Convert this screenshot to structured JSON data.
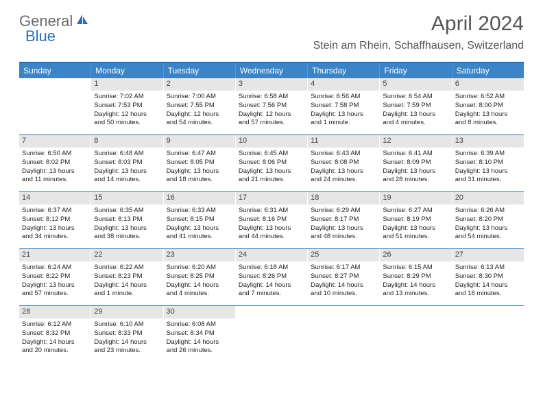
{
  "logo": {
    "text1": "General",
    "text2": "Blue"
  },
  "title": "April 2024",
  "location": "Stein am Rhein, Schaffhausen, Switzerland",
  "colors": {
    "header_bg": "#3a84c7",
    "header_border": "#2a6fb5",
    "date_strip_bg": "#e6e6e6",
    "text": "#333333",
    "title_text": "#555555",
    "logo_gray": "#6a6a6a",
    "logo_blue": "#2a6fb5"
  },
  "day_headers": [
    "Sunday",
    "Monday",
    "Tuesday",
    "Wednesday",
    "Thursday",
    "Friday",
    "Saturday"
  ],
  "weeks": [
    [
      {
        "date": "",
        "lines": []
      },
      {
        "date": "1",
        "lines": [
          "Sunrise: 7:02 AM",
          "Sunset: 7:53 PM",
          "Daylight: 12 hours",
          "and 50 minutes."
        ]
      },
      {
        "date": "2",
        "lines": [
          "Sunrise: 7:00 AM",
          "Sunset: 7:55 PM",
          "Daylight: 12 hours",
          "and 54 minutes."
        ]
      },
      {
        "date": "3",
        "lines": [
          "Sunrise: 6:58 AM",
          "Sunset: 7:56 PM",
          "Daylight: 12 hours",
          "and 57 minutes."
        ]
      },
      {
        "date": "4",
        "lines": [
          "Sunrise: 6:56 AM",
          "Sunset: 7:58 PM",
          "Daylight: 13 hours",
          "and 1 minute."
        ]
      },
      {
        "date": "5",
        "lines": [
          "Sunrise: 6:54 AM",
          "Sunset: 7:59 PM",
          "Daylight: 13 hours",
          "and 4 minutes."
        ]
      },
      {
        "date": "6",
        "lines": [
          "Sunrise: 6:52 AM",
          "Sunset: 8:00 PM",
          "Daylight: 13 hours",
          "and 8 minutes."
        ]
      }
    ],
    [
      {
        "date": "7",
        "lines": [
          "Sunrise: 6:50 AM",
          "Sunset: 8:02 PM",
          "Daylight: 13 hours",
          "and 11 minutes."
        ]
      },
      {
        "date": "8",
        "lines": [
          "Sunrise: 6:48 AM",
          "Sunset: 8:03 PM",
          "Daylight: 13 hours",
          "and 14 minutes."
        ]
      },
      {
        "date": "9",
        "lines": [
          "Sunrise: 6:47 AM",
          "Sunset: 8:05 PM",
          "Daylight: 13 hours",
          "and 18 minutes."
        ]
      },
      {
        "date": "10",
        "lines": [
          "Sunrise: 6:45 AM",
          "Sunset: 8:06 PM",
          "Daylight: 13 hours",
          "and 21 minutes."
        ]
      },
      {
        "date": "11",
        "lines": [
          "Sunrise: 6:43 AM",
          "Sunset: 8:08 PM",
          "Daylight: 13 hours",
          "and 24 minutes."
        ]
      },
      {
        "date": "12",
        "lines": [
          "Sunrise: 6:41 AM",
          "Sunset: 8:09 PM",
          "Daylight: 13 hours",
          "and 28 minutes."
        ]
      },
      {
        "date": "13",
        "lines": [
          "Sunrise: 6:39 AM",
          "Sunset: 8:10 PM",
          "Daylight: 13 hours",
          "and 31 minutes."
        ]
      }
    ],
    [
      {
        "date": "14",
        "lines": [
          "Sunrise: 6:37 AM",
          "Sunset: 8:12 PM",
          "Daylight: 13 hours",
          "and 34 minutes."
        ]
      },
      {
        "date": "15",
        "lines": [
          "Sunrise: 6:35 AM",
          "Sunset: 8:13 PM",
          "Daylight: 13 hours",
          "and 38 minutes."
        ]
      },
      {
        "date": "16",
        "lines": [
          "Sunrise: 6:33 AM",
          "Sunset: 8:15 PM",
          "Daylight: 13 hours",
          "and 41 minutes."
        ]
      },
      {
        "date": "17",
        "lines": [
          "Sunrise: 6:31 AM",
          "Sunset: 8:16 PM",
          "Daylight: 13 hours",
          "and 44 minutes."
        ]
      },
      {
        "date": "18",
        "lines": [
          "Sunrise: 6:29 AM",
          "Sunset: 8:17 PM",
          "Daylight: 13 hours",
          "and 48 minutes."
        ]
      },
      {
        "date": "19",
        "lines": [
          "Sunrise: 6:27 AM",
          "Sunset: 8:19 PM",
          "Daylight: 13 hours",
          "and 51 minutes."
        ]
      },
      {
        "date": "20",
        "lines": [
          "Sunrise: 6:26 AM",
          "Sunset: 8:20 PM",
          "Daylight: 13 hours",
          "and 54 minutes."
        ]
      }
    ],
    [
      {
        "date": "21",
        "lines": [
          "Sunrise: 6:24 AM",
          "Sunset: 8:22 PM",
          "Daylight: 13 hours",
          "and 57 minutes."
        ]
      },
      {
        "date": "22",
        "lines": [
          "Sunrise: 6:22 AM",
          "Sunset: 8:23 PM",
          "Daylight: 14 hours",
          "and 1 minute."
        ]
      },
      {
        "date": "23",
        "lines": [
          "Sunrise: 6:20 AM",
          "Sunset: 8:25 PM",
          "Daylight: 14 hours",
          "and 4 minutes."
        ]
      },
      {
        "date": "24",
        "lines": [
          "Sunrise: 6:18 AM",
          "Sunset: 8:26 PM",
          "Daylight: 14 hours",
          "and 7 minutes."
        ]
      },
      {
        "date": "25",
        "lines": [
          "Sunrise: 6:17 AM",
          "Sunset: 8:27 PM",
          "Daylight: 14 hours",
          "and 10 minutes."
        ]
      },
      {
        "date": "26",
        "lines": [
          "Sunrise: 6:15 AM",
          "Sunset: 8:29 PM",
          "Daylight: 14 hours",
          "and 13 minutes."
        ]
      },
      {
        "date": "27",
        "lines": [
          "Sunrise: 6:13 AM",
          "Sunset: 8:30 PM",
          "Daylight: 14 hours",
          "and 16 minutes."
        ]
      }
    ],
    [
      {
        "date": "28",
        "lines": [
          "Sunrise: 6:12 AM",
          "Sunset: 8:32 PM",
          "Daylight: 14 hours",
          "and 20 minutes."
        ]
      },
      {
        "date": "29",
        "lines": [
          "Sunrise: 6:10 AM",
          "Sunset: 8:33 PM",
          "Daylight: 14 hours",
          "and 23 minutes."
        ]
      },
      {
        "date": "30",
        "lines": [
          "Sunrise: 6:08 AM",
          "Sunset: 8:34 PM",
          "Daylight: 14 hours",
          "and 26 minutes."
        ]
      },
      {
        "date": "",
        "lines": []
      },
      {
        "date": "",
        "lines": []
      },
      {
        "date": "",
        "lines": []
      },
      {
        "date": "",
        "lines": []
      }
    ]
  ]
}
